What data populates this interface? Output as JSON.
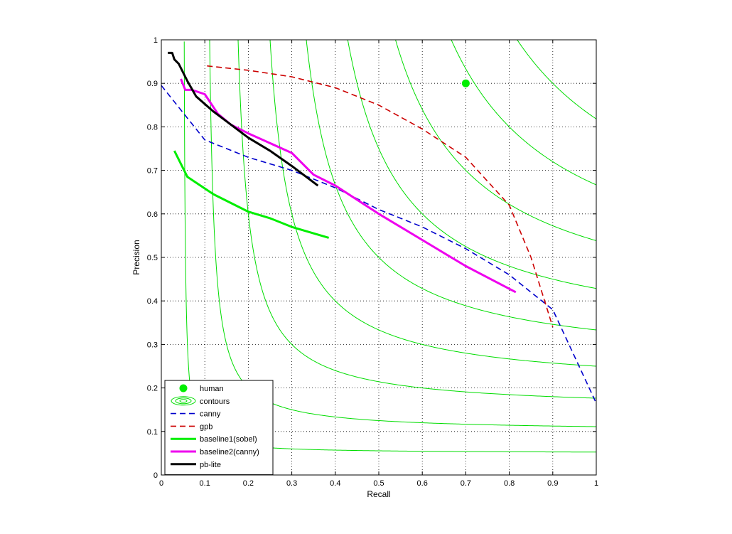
{
  "chart_data": {
    "type": "line",
    "title": "",
    "xlabel": "Recall",
    "ylabel": "Precision",
    "xlim": [
      0,
      1
    ],
    "ylim": [
      0,
      1
    ],
    "grid": true,
    "legend_position": "bottom-left",
    "xticks": [
      0,
      0.1,
      0.2,
      0.3,
      0.4,
      0.5,
      0.6,
      0.7,
      0.8,
      0.9,
      1
    ],
    "yticks": [
      0,
      0.1,
      0.2,
      0.3,
      0.4,
      0.5,
      0.6,
      0.7,
      0.8,
      0.9,
      1
    ],
    "xtick_labels": [
      "0",
      "0.1",
      "0.2",
      "0.3",
      "0.4",
      "0.5",
      "0.6",
      "0.7",
      "0.8",
      "0.9",
      "1"
    ],
    "ytick_labels": [
      "0",
      "0.1",
      "0.2",
      "0.3",
      "0.4",
      "0.5",
      "0.6",
      "0.7",
      "0.8",
      "0.9",
      "1"
    ],
    "contour_levels": [
      0.1,
      0.2,
      0.3,
      0.4,
      0.5,
      0.6,
      0.7,
      0.8,
      0.9
    ],
    "series": [
      {
        "name": "human",
        "kind": "marker",
        "color": "#00ee00",
        "points": [
          [
            0.7,
            0.9
          ]
        ]
      },
      {
        "name": "contours",
        "kind": "contour",
        "color": "#00dd00"
      },
      {
        "name": "canny",
        "kind": "line",
        "style": "dashed",
        "color": "#0000cc",
        "points": [
          [
            0.0,
            0.895
          ],
          [
            0.1,
            0.77
          ],
          [
            0.2,
            0.73
          ],
          [
            0.3,
            0.7
          ],
          [
            0.4,
            0.66
          ],
          [
            0.5,
            0.61
          ],
          [
            0.6,
            0.57
          ],
          [
            0.7,
            0.52
          ],
          [
            0.8,
            0.46
          ],
          [
            0.9,
            0.38
          ],
          [
            1.0,
            0.165
          ]
        ]
      },
      {
        "name": "gpb",
        "kind": "line",
        "style": "dashed",
        "color": "#cc0000",
        "points": [
          [
            0.105,
            0.94
          ],
          [
            0.2,
            0.93
          ],
          [
            0.3,
            0.915
          ],
          [
            0.4,
            0.89
          ],
          [
            0.5,
            0.85
          ],
          [
            0.6,
            0.795
          ],
          [
            0.7,
            0.73
          ],
          [
            0.8,
            0.62
          ],
          [
            0.85,
            0.5
          ],
          [
            0.9,
            0.34
          ]
        ]
      },
      {
        "name": "baseline1(sobel)",
        "kind": "line",
        "style": "solid",
        "color": "#00ee00",
        "points": [
          [
            0.03,
            0.745
          ],
          [
            0.06,
            0.685
          ],
          [
            0.12,
            0.645
          ],
          [
            0.2,
            0.605
          ],
          [
            0.25,
            0.59
          ],
          [
            0.3,
            0.57
          ],
          [
            0.385,
            0.545
          ]
        ]
      },
      {
        "name": "baseline2(canny)",
        "kind": "line",
        "style": "solid",
        "color": "#ee00ee",
        "points": [
          [
            0.045,
            0.91
          ],
          [
            0.055,
            0.885
          ],
          [
            0.07,
            0.885
          ],
          [
            0.1,
            0.875
          ],
          [
            0.13,
            0.83
          ],
          [
            0.16,
            0.805
          ],
          [
            0.2,
            0.785
          ],
          [
            0.3,
            0.74
          ],
          [
            0.35,
            0.69
          ],
          [
            0.4,
            0.665
          ],
          [
            0.5,
            0.6
          ],
          [
            0.6,
            0.54
          ],
          [
            0.7,
            0.48
          ],
          [
            0.815,
            0.42
          ]
        ]
      },
      {
        "name": "pb-lite",
        "kind": "line",
        "style": "solid",
        "color": "#000000",
        "points": [
          [
            0.015,
            0.97
          ],
          [
            0.025,
            0.97
          ],
          [
            0.03,
            0.955
          ],
          [
            0.04,
            0.945
          ],
          [
            0.06,
            0.905
          ],
          [
            0.08,
            0.87
          ],
          [
            0.12,
            0.835
          ],
          [
            0.16,
            0.805
          ],
          [
            0.2,
            0.775
          ],
          [
            0.25,
            0.745
          ],
          [
            0.3,
            0.71
          ],
          [
            0.36,
            0.665
          ]
        ]
      }
    ]
  }
}
